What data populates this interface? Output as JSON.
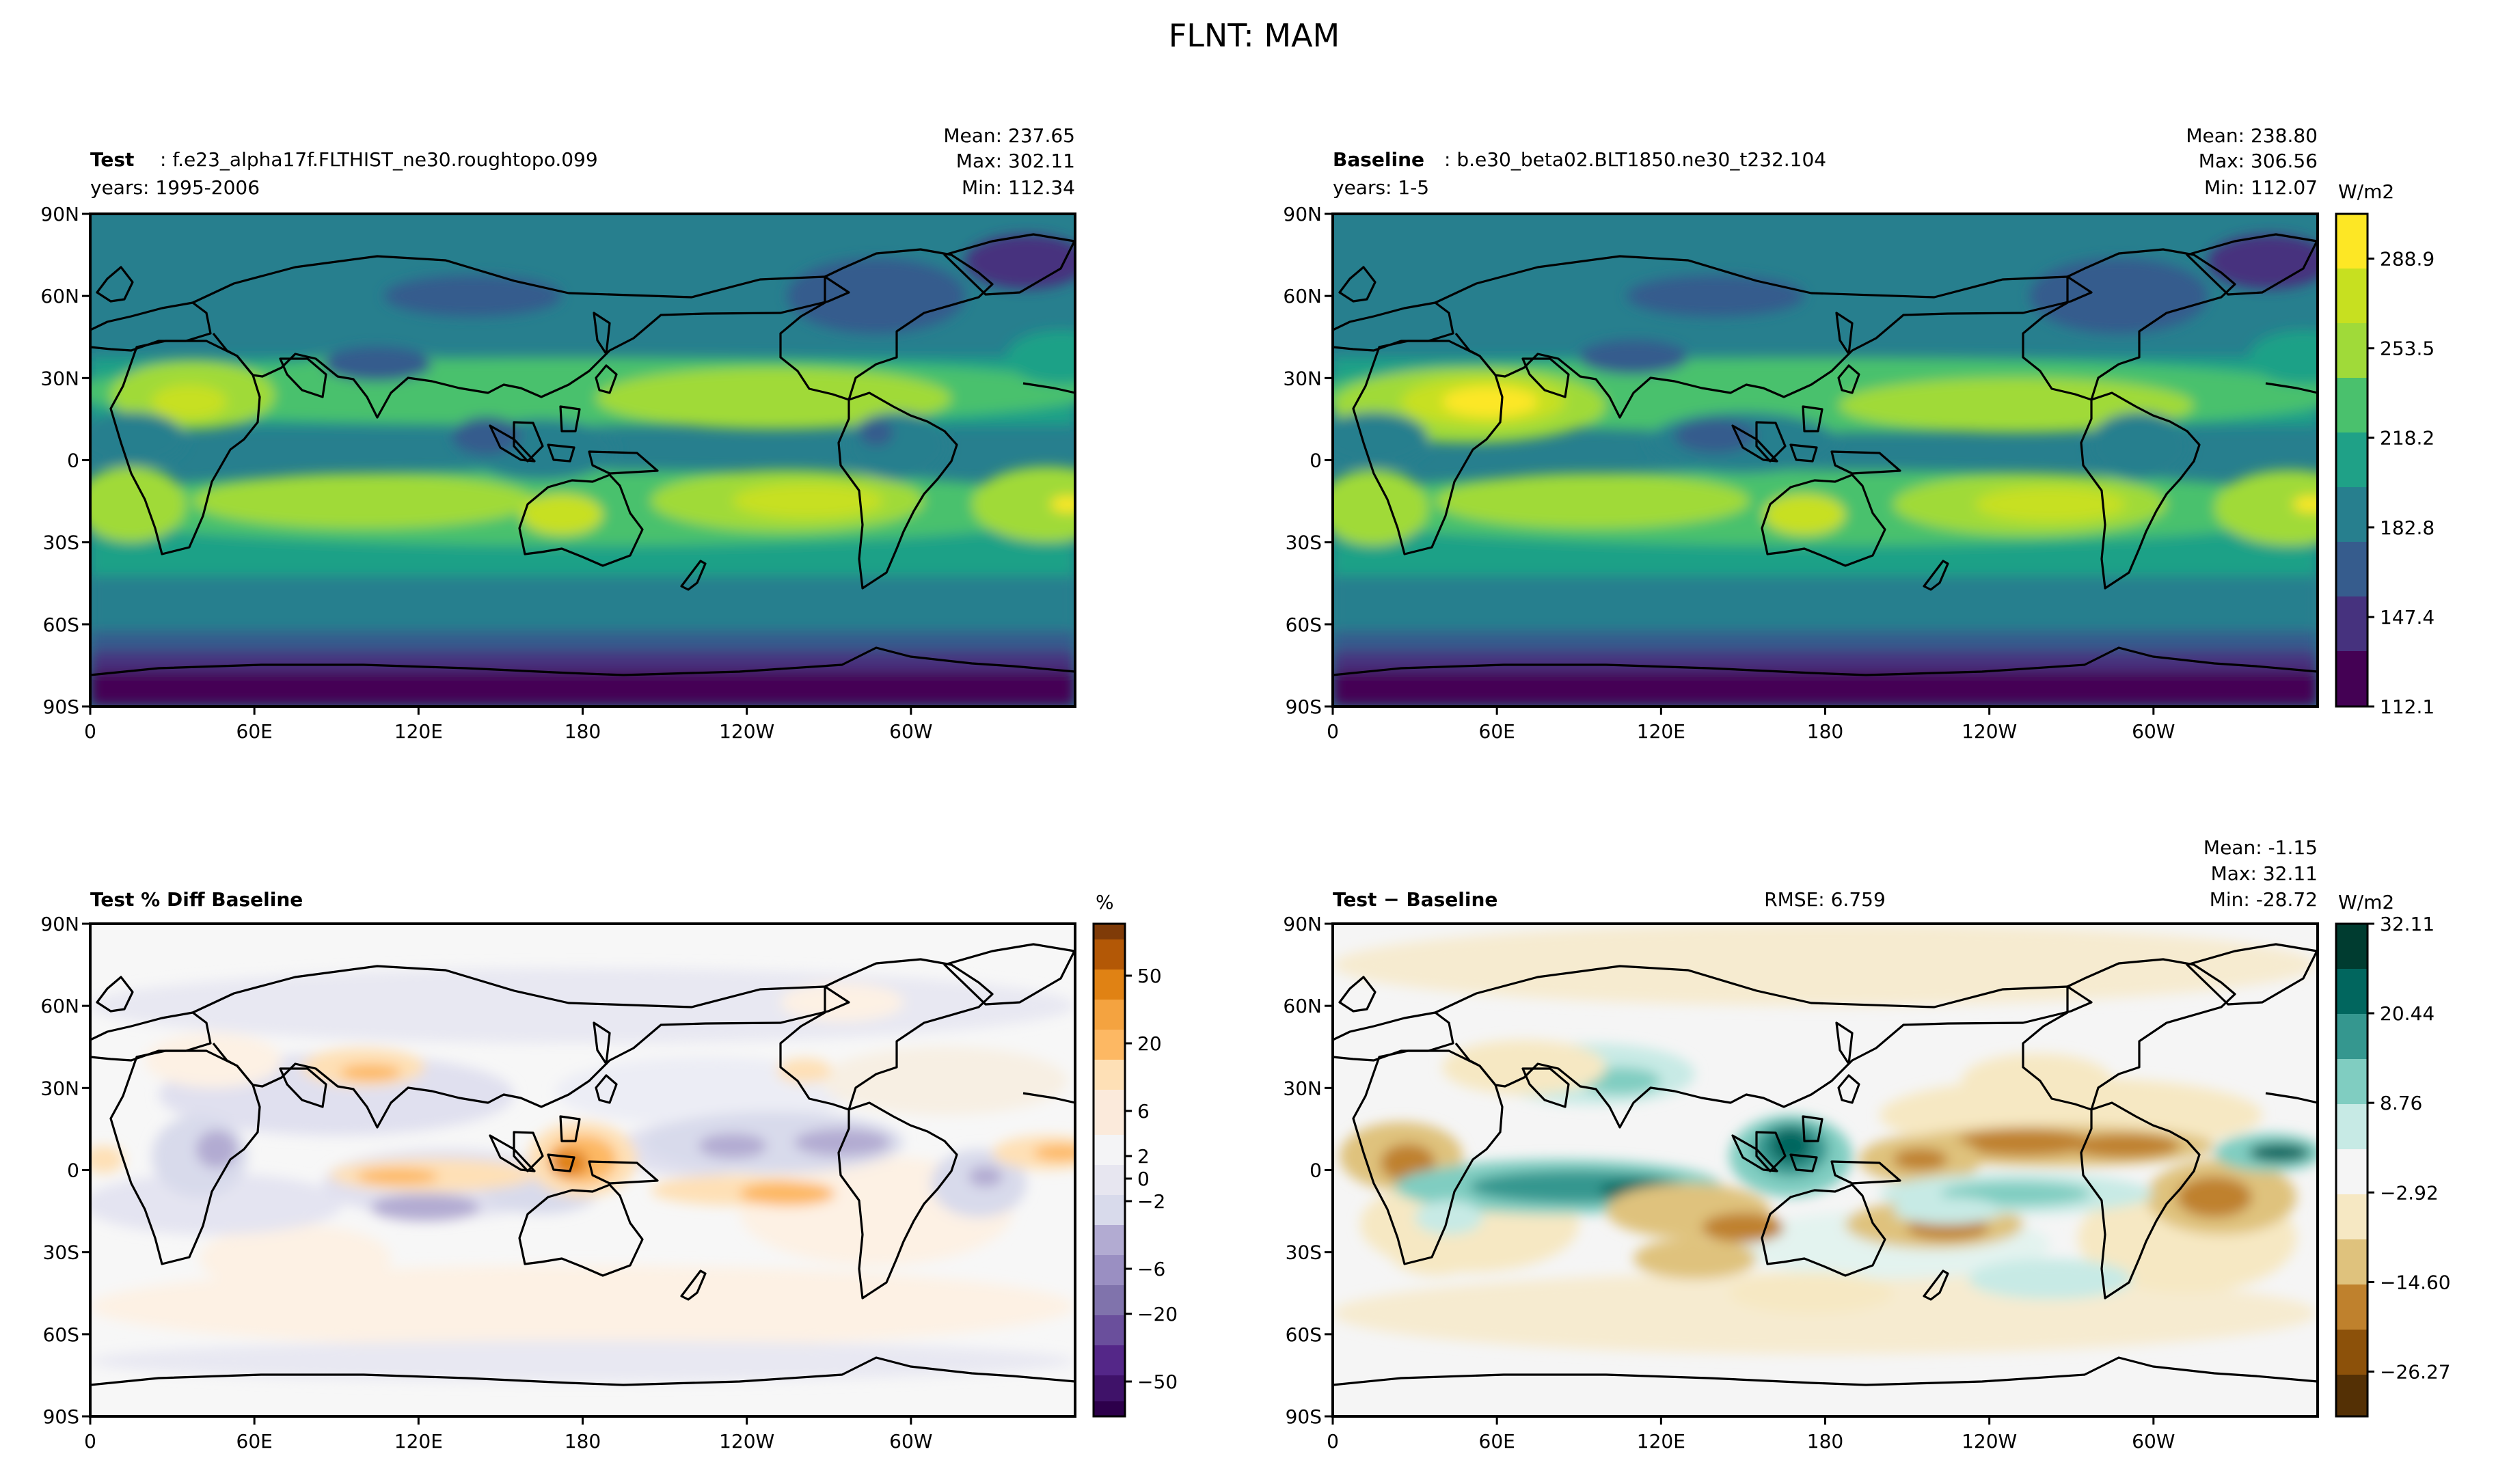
{
  "figure": {
    "title": "FLNT: MAM"
  },
  "colors": {
    "viridis": [
      "#440154",
      "#46327e",
      "#365c8d",
      "#277f8e",
      "#1fa187",
      "#4ac16d",
      "#a0da39",
      "#c7e020",
      "#fde725"
    ],
    "puor": [
      "#2d004b",
      "#542788",
      "#8073ac",
      "#b2abd2",
      "#d8daeb",
      "#f7f7f7",
      "#fee0b6",
      "#fdb863",
      "#e08214",
      "#b35806",
      "#7f3b08"
    ],
    "brbg": [
      "#543005",
      "#8c510a",
      "#bf812d",
      "#dfc27d",
      "#f6e8c3",
      "#f5f5f5",
      "#c7eae5",
      "#80cdc1",
      "#35978f",
      "#01665e",
      "#003c30"
    ],
    "coast": "#000000"
  },
  "chart_data": [
    {
      "type": "contour-map",
      "panel": "test",
      "name_bold": "Test",
      "name_rest": ": f.e23_alpha17f.FLTHIST_ne30.roughtopo.099",
      "years": "years: 1995-2006",
      "stats": {
        "mean": "Mean: 237.65",
        "max": "Max: 302.11",
        "min": "Min: 112.34"
      },
      "mean": 237.65,
      "max": 302.11,
      "min": 112.34,
      "xlim": [
        0,
        360
      ],
      "ylim": [
        -90,
        90
      ],
      "xticks": [
        "0",
        "60E",
        "120E",
        "180",
        "120W",
        "60W"
      ],
      "yticks": [
        "90N",
        "60N",
        "30N",
        "0",
        "30S",
        "60S",
        "90S"
      ],
      "colormap": "viridis"
    },
    {
      "type": "contour-map",
      "panel": "baseline",
      "name_bold": "Baseline",
      "name_rest": ": b.e30_beta02.BLT1850.ne30_t232.104",
      "years": "years: 1-5",
      "stats": {
        "mean": "Mean: 238.80",
        "max": "Max: 306.56",
        "min": "Min: 112.07"
      },
      "mean": 238.8,
      "max": 306.56,
      "min": 112.07,
      "xlim": [
        0,
        360
      ],
      "ylim": [
        -90,
        90
      ],
      "xticks": [
        "0",
        "60E",
        "120E",
        "180",
        "120W",
        "60W"
      ],
      "yticks": [
        "90N",
        "60N",
        "30N",
        "0",
        "30S",
        "60S",
        "90S"
      ],
      "colormap": "viridis",
      "colorbar": {
        "units": "W/m2",
        "ticks": [
          "112.1",
          "147.4",
          "182.8",
          "218.2",
          "253.5",
          "288.9"
        ],
        "range": [
          112.1,
          306.56
        ]
      }
    },
    {
      "type": "contour-map",
      "panel": "pctdiff",
      "name_bold": "Test % Diff Baseline",
      "xlim": [
        0,
        360
      ],
      "ylim": [
        -90,
        90
      ],
      "xticks": [
        "0",
        "60E",
        "120E",
        "180",
        "120W",
        "60W"
      ],
      "yticks": [
        "90N",
        "60N",
        "30N",
        "0",
        "30S",
        "60S",
        "90S"
      ],
      "colormap": "puor",
      "colorbar": {
        "units": "%",
        "ticks": [
          "50",
          "20",
          "6",
          "2",
          "0",
          "−2",
          "−6",
          "−20",
          "−50"
        ]
      }
    },
    {
      "type": "contour-map",
      "panel": "diff",
      "name_bold": "Test − Baseline",
      "rmse": "RMSE: 6.759",
      "stats": {
        "mean": "Mean: -1.15",
        "max": "Max: 32.11",
        "min": "Min: -28.72"
      },
      "mean": -1.15,
      "max": 32.11,
      "min": -28.72,
      "xlim": [
        0,
        360
      ],
      "ylim": [
        -90,
        90
      ],
      "xticks": [
        "0",
        "60E",
        "120E",
        "180",
        "120W",
        "60W"
      ],
      "yticks": [
        "90N",
        "60N",
        "30N",
        "0",
        "30S",
        "60S",
        "90S"
      ],
      "colormap": "brbg",
      "colorbar": {
        "units": "W/m2",
        "ticks": [
          "32.11",
          "20.44",
          "8.76",
          "−2.92",
          "−14.60",
          "−26.27"
        ],
        "range": [
          -32.11,
          32.11
        ]
      }
    }
  ]
}
